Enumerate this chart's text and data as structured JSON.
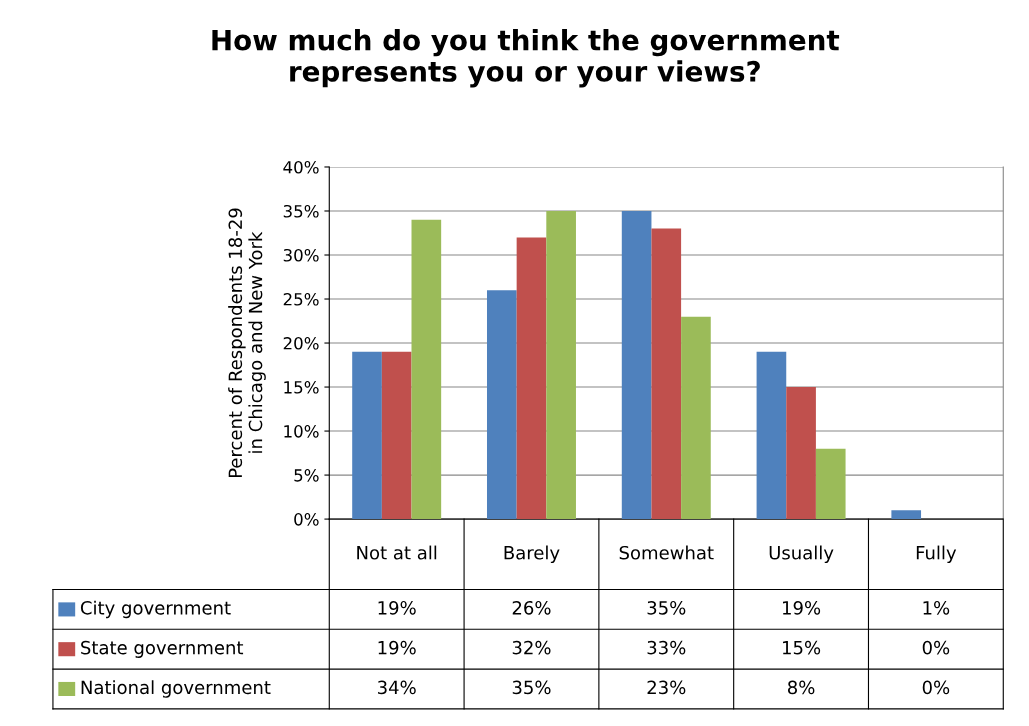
{
  "chart_data": {
    "type": "bar",
    "title": "How much do you think the government\nrepresents you or your views?",
    "ylabel": "Percent of Respondents 18-29\nin Chicago and New York",
    "categories": [
      "Not at all",
      "Barely",
      "Somewhat",
      "Usually",
      "Fully"
    ],
    "series": [
      {
        "name": "City government",
        "color": "#4f81bd",
        "values": [
          19,
          26,
          35,
          19,
          1
        ],
        "value_labels": [
          "19%",
          "26%",
          "35%",
          "19%",
          "1%"
        ]
      },
      {
        "name": "State government",
        "color": "#c0504d",
        "values": [
          19,
          32,
          33,
          15,
          0
        ],
        "value_labels": [
          "19%",
          "32%",
          "33%",
          "15%",
          "0%"
        ]
      },
      {
        "name": "National government",
        "color": "#9bbb59",
        "values": [
          34,
          35,
          23,
          8,
          0
        ],
        "value_labels": [
          "34%",
          "35%",
          "23%",
          "8%",
          "0%"
        ]
      }
    ],
    "ylim": [
      0,
      40
    ],
    "yticks": [
      {
        "value": 0,
        "label": "0%"
      },
      {
        "value": 5,
        "label": "5%"
      },
      {
        "value": 10,
        "label": "10%"
      },
      {
        "value": 15,
        "label": "15%"
      },
      {
        "value": 20,
        "label": "20%"
      },
      {
        "value": 25,
        "label": "25%"
      },
      {
        "value": 30,
        "label": "30%"
      },
      {
        "value": 35,
        "label": "35%"
      },
      {
        "value": 40,
        "label": "40%"
      }
    ],
    "grid": "y",
    "legend": "bottom left"
  }
}
